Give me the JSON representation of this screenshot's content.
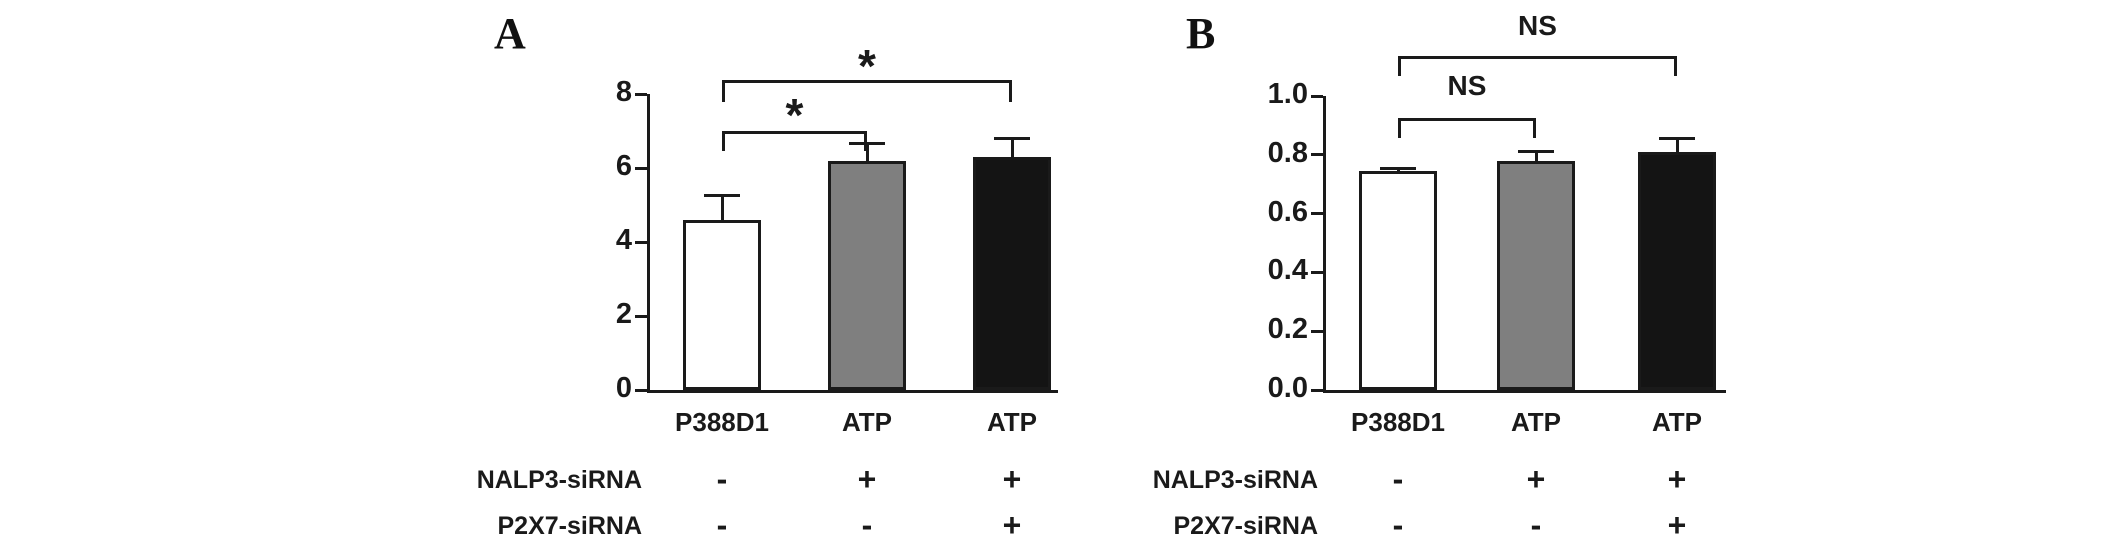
{
  "chart_data": [
    {
      "type": "bar",
      "panel_label": "A",
      "title": "",
      "xlabel": "",
      "ylabel": "",
      "categories": [
        "P388D1",
        "ATP",
        "ATP"
      ],
      "values": [
        4.6,
        6.2,
        6.3
      ],
      "errors": [
        0.65,
        0.45,
        0.5
      ],
      "bar_colors": [
        "#ffffff",
        "#7f7f7f",
        "#141414"
      ],
      "ylim": [
        0,
        8
      ],
      "yticks": [
        0,
        2,
        4,
        6,
        8
      ],
      "ytick_labels": [
        "0",
        "2",
        "4",
        "6",
        "8"
      ],
      "grid": false,
      "legend": false,
      "annotations": [
        {
          "label": "*",
          "from": 0,
          "to": 1
        },
        {
          "label": "*",
          "from": 0,
          "to": 2
        }
      ],
      "treatment_rows": [
        {
          "label": "NALP3-siRNA",
          "symbols": [
            "-",
            "+",
            "+"
          ]
        },
        {
          "label": "P2X7-siRNA",
          "symbols": [
            "-",
            "-",
            "+"
          ]
        }
      ]
    },
    {
      "type": "bar",
      "panel_label": "B",
      "title": "",
      "xlabel": "",
      "ylabel": "",
      "categories": [
        "P388D1",
        "ATP",
        "ATP"
      ],
      "values": [
        0.745,
        0.78,
        0.81
      ],
      "errors": [
        0.01,
        0.03,
        0.045
      ],
      "bar_colors": [
        "#ffffff",
        "#7f7f7f",
        "#141414"
      ],
      "ylim": [
        0,
        1.0
      ],
      "yticks": [
        0,
        0.2,
        0.4,
        0.6,
        0.8,
        1.0
      ],
      "ytick_labels": [
        "0.0",
        "0.2",
        "0.4",
        "0.6",
        "0.8",
        "1.0"
      ],
      "grid": false,
      "legend": false,
      "annotations": [
        {
          "label": "NS",
          "from": 0,
          "to": 1
        },
        {
          "label": "NS",
          "from": 0,
          "to": 2
        }
      ],
      "treatment_rows": [
        {
          "label": "NALP3-siRNA",
          "symbols": [
            "-",
            "+",
            "+"
          ]
        },
        {
          "label": "P2X7-siRNA",
          "symbols": [
            "-",
            "-",
            "+"
          ]
        }
      ]
    }
  ]
}
